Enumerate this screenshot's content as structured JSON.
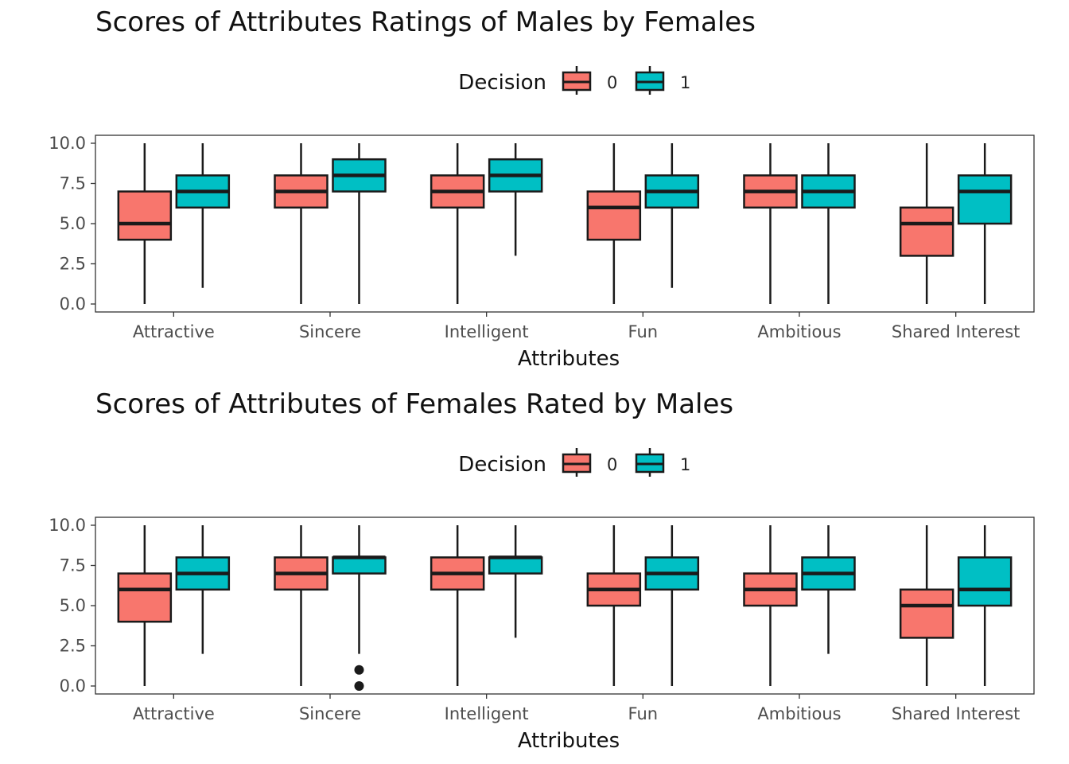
{
  "colors": {
    "decision_0": "#F8766D",
    "decision_1": "#00BFC4",
    "line": "#1a1a1a"
  },
  "chart_data": [
    {
      "type": "box",
      "title": "Scores of Attributes Ratings of Males by Females",
      "xlabel": "Attributes",
      "ylabel": "",
      "ylim": [
        0,
        10
      ],
      "yticks": [
        "0.0",
        "2.5",
        "5.0",
        "7.5",
        "10.0"
      ],
      "legend_title": "Decision",
      "legend_placement": "top",
      "categories": [
        "Attractive",
        "Sincere",
        "Intelligent",
        "Fun",
        "Ambitious",
        "Shared Interest"
      ],
      "series": [
        {
          "name": "0",
          "boxes": [
            {
              "min": 0,
              "q1": 4,
              "median": 5,
              "q3": 7,
              "max": 10,
              "outliers": []
            },
            {
              "min": 0,
              "q1": 6,
              "median": 7,
              "q3": 8,
              "max": 10,
              "outliers": []
            },
            {
              "min": 0,
              "q1": 6,
              "median": 7,
              "q3": 8,
              "max": 10,
              "outliers": []
            },
            {
              "min": 0,
              "q1": 4,
              "median": 6,
              "q3": 7,
              "max": 10,
              "outliers": []
            },
            {
              "min": 0,
              "q1": 6,
              "median": 7,
              "q3": 8,
              "max": 10,
              "outliers": []
            },
            {
              "min": 0,
              "q1": 3,
              "median": 5,
              "q3": 6,
              "max": 10,
              "outliers": []
            }
          ]
        },
        {
          "name": "1",
          "boxes": [
            {
              "min": 1,
              "q1": 6,
              "median": 7,
              "q3": 8,
              "max": 10,
              "outliers": []
            },
            {
              "min": 0,
              "q1": 7,
              "median": 8,
              "q3": 9,
              "max": 10,
              "outliers": []
            },
            {
              "min": 3,
              "q1": 7,
              "median": 8,
              "q3": 9,
              "max": 10,
              "outliers": []
            },
            {
              "min": 1,
              "q1": 6,
              "median": 7,
              "q3": 8,
              "max": 10,
              "outliers": []
            },
            {
              "min": 0,
              "q1": 6,
              "median": 7,
              "q3": 8,
              "max": 10,
              "outliers": []
            },
            {
              "min": 0,
              "q1": 5,
              "median": 7,
              "q3": 8,
              "max": 10,
              "outliers": []
            }
          ]
        }
      ]
    },
    {
      "type": "box",
      "title": "Scores of Attributes of Females Rated by Males",
      "xlabel": "Attributes",
      "ylabel": "",
      "ylim": [
        0,
        10
      ],
      "yticks": [
        "0.0",
        "2.5",
        "5.0",
        "7.5",
        "10.0"
      ],
      "legend_title": "Decision",
      "legend_placement": "top",
      "categories": [
        "Attractive",
        "Sincere",
        "Intelligent",
        "Fun",
        "Ambitious",
        "Shared Interest"
      ],
      "series": [
        {
          "name": "0",
          "boxes": [
            {
              "min": 0,
              "q1": 4,
              "median": 6,
              "q3": 7,
              "max": 10,
              "outliers": []
            },
            {
              "min": 0,
              "q1": 6,
              "median": 7,
              "q3": 8,
              "max": 10,
              "outliers": []
            },
            {
              "min": 0,
              "q1": 6,
              "median": 7,
              "q3": 8,
              "max": 10,
              "outliers": []
            },
            {
              "min": 0,
              "q1": 5,
              "median": 6,
              "q3": 7,
              "max": 10,
              "outliers": []
            },
            {
              "min": 0,
              "q1": 5,
              "median": 6,
              "q3": 7,
              "max": 10,
              "outliers": []
            },
            {
              "min": 0,
              "q1": 3,
              "median": 5,
              "q3": 6,
              "max": 10,
              "outliers": []
            }
          ]
        },
        {
          "name": "1",
          "boxes": [
            {
              "min": 2,
              "q1": 6,
              "median": 7,
              "q3": 8,
              "max": 10,
              "outliers": []
            },
            {
              "min": 2,
              "q1": 7,
              "median": 8,
              "q3": 8,
              "max": 10,
              "outliers": [
                1,
                0
              ]
            },
            {
              "min": 3,
              "q1": 7,
              "median": 8,
              "q3": 8,
              "max": 10,
              "outliers": []
            },
            {
              "min": 0,
              "q1": 6,
              "median": 7,
              "q3": 8,
              "max": 10,
              "outliers": []
            },
            {
              "min": 2,
              "q1": 6,
              "median": 7,
              "q3": 8,
              "max": 10,
              "outliers": []
            },
            {
              "min": 0,
              "q1": 5,
              "median": 6,
              "q3": 8,
              "max": 10,
              "outliers": []
            }
          ]
        }
      ]
    }
  ]
}
